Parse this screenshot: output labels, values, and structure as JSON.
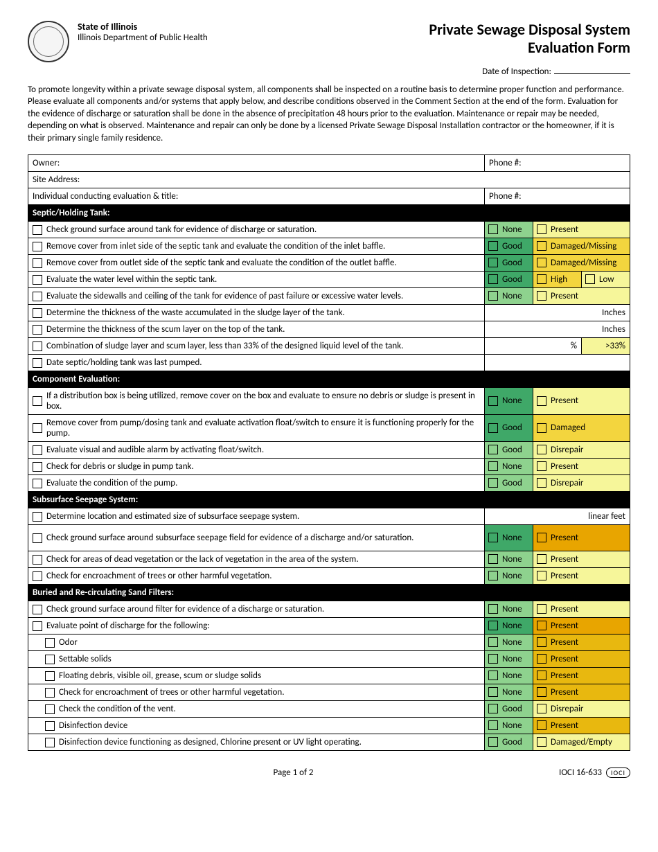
{
  "colors": {
    "green_dark": "#3fa868",
    "green_light": "#8ed28e",
    "yellow_light": "#f6f69a",
    "yellow_mid": "#f3d53e",
    "yellow_dark": "#e8b80f",
    "orange": "#e8a500"
  },
  "header": {
    "state": "State of Illinois",
    "dept": "Illinois Department of Public Health",
    "title_l1": "Private Sewage Disposal System",
    "title_l2": "Evaluation Form",
    "date_label": "Date of Inspection:"
  },
  "intro": "To promote longevity within a private sewage disposal system, all components shall be inspected on a routine basis to determine proper function and performance. Please evaluate all components and/or systems that apply below, and describe conditions observed in the Comment Section at the end of the form. Evaluation for the evidence of discharge or saturation shall be done in the absence of precipitation 48 hours prior to the evaluation. Maintenance or repair may be needed, depending on what is observed. Maintenance and repair can only be done by a licensed Private Sewage Disposal Installation contractor or the homeowner, if it is their primary single family residence.",
  "info": {
    "owner": "Owner:",
    "phone": "Phone #:",
    "site": "Site Address:",
    "evaluator": "Individual conducting evaluation & title:"
  },
  "sections": [
    {
      "title": "Septic/Holding Tank:",
      "rows": [
        {
          "text": "Check ground surface around tank for evidence of discharge or saturation.",
          "opts": [
            {
              "label": "None",
              "c": "green_light"
            },
            {
              "label": "Present",
              "c": "yellow_light"
            }
          ]
        },
        {
          "text": "Remove cover from inlet side of the septic tank and evaluate the condition of the inlet baffle.",
          "opts": [
            {
              "label": "Good",
              "c": "green_dark"
            },
            {
              "label": "Damaged/Missing",
              "c": "yellow_mid"
            }
          ]
        },
        {
          "text": "Remove cover from outlet side of the septic tank and evaluate the condition of the outlet baffle.",
          "opts": [
            {
              "label": "Good",
              "c": "green_dark"
            },
            {
              "label": "Damaged/Missing",
              "c": "yellow_mid"
            }
          ]
        },
        {
          "text": "Evaluate the water level within the septic tank.",
          "opts": [
            {
              "label": "Good",
              "c": "green_dark"
            },
            {
              "label": "High",
              "c": "yellow_mid",
              "half": true
            },
            {
              "label": "Low",
              "c": "yellow_light",
              "half": true
            }
          ]
        },
        {
          "text": "Evaluate the sidewalls and ceiling of the tank for evidence of past failure or excessive water levels.",
          "opts": [
            {
              "label": "None",
              "c": "green_light"
            },
            {
              "label": "Present",
              "c": "yellow_light"
            }
          ]
        },
        {
          "text": "Determine the thickness of the waste accumulated in the sludge layer of the tank.",
          "trail": "Inches"
        },
        {
          "text": "Determine the thickness of the scum layer on the top of the tank.",
          "trail": "Inches"
        },
        {
          "text": "Combination of sludge layer and scum layer, less than 33% of the designed liquid level of the tank.",
          "pct": true
        },
        {
          "text": "Date septic/holding tank was last pumped.",
          "blank": true
        }
      ]
    },
    {
      "title": "Component Evaluation:",
      "rows": [
        {
          "text": "If a distribution box is being utilized, remove cover on the box and evaluate to ensure no debris or sludge is present in box.",
          "opts": [
            {
              "label": "None",
              "c": "green_dark"
            },
            {
              "label": "Present",
              "c": "yellow_light"
            }
          ],
          "tall": true
        },
        {
          "text": "Remove cover from pump/dosing tank and evaluate activation float/switch to ensure it is functioning properly for the pump.",
          "opts": [
            {
              "label": "Good",
              "c": "green_dark"
            },
            {
              "label": "Damaged",
              "c": "yellow_mid"
            }
          ],
          "tall": true
        },
        {
          "text": "Evaluate visual and audible alarm by activating float/switch.",
          "opts": [
            {
              "label": "Good",
              "c": "green_light"
            },
            {
              "label": "Disrepair",
              "c": "yellow_light"
            }
          ]
        },
        {
          "text": "Check for debris or sludge in pump tank.",
          "opts": [
            {
              "label": "None",
              "c": "green_light"
            },
            {
              "label": "Present",
              "c": "yellow_light"
            }
          ]
        },
        {
          "text": "Evaluate the condition of the pump.",
          "opts": [
            {
              "label": "Good",
              "c": "green_light"
            },
            {
              "label": "Disrepair",
              "c": "yellow_light"
            }
          ]
        }
      ]
    },
    {
      "title": "Subsurface Seepage System:",
      "rows": [
        {
          "text": "Determine location and estimated size of subsurface seepage system.",
          "trail": "linear feet"
        },
        {
          "text": "Check ground surface around subsurface seepage field for evidence of a discharge and/or saturation.",
          "opts": [
            {
              "label": "None",
              "c": "green_dark"
            },
            {
              "label": "Present",
              "c": "orange"
            }
          ],
          "tall": true
        },
        {
          "text": "Check for areas of dead vegetation or the lack of vegetation in the area of the system.",
          "opts": [
            {
              "label": "None",
              "c": "green_light"
            },
            {
              "label": "Present",
              "c": "yellow_light"
            }
          ]
        },
        {
          "text": "Check for encroachment of trees or other harmful vegetation.",
          "opts": [
            {
              "label": "None",
              "c": "green_light"
            },
            {
              "label": "Present",
              "c": "yellow_light"
            }
          ]
        }
      ]
    },
    {
      "title": "Buried and Re-circulating Sand Filters:",
      "rows": [
        {
          "text": "Check ground surface around filter for evidence of a discharge or saturation.",
          "opts": [
            {
              "label": "None",
              "c": "green_light"
            },
            {
              "label": "Present",
              "c": "yellow_light"
            }
          ]
        },
        {
          "text": "Evaluate point of discharge for the following:",
          "opts": [
            {
              "label": "None",
              "c": "green_dark"
            },
            {
              "label": "Present",
              "c": "orange"
            }
          ]
        },
        {
          "text": "Odor",
          "indent": true,
          "opts": [
            {
              "label": "None",
              "c": "green_light"
            },
            {
              "label": "Present",
              "c": "yellow_dark"
            }
          ]
        },
        {
          "text": "Settable solids",
          "indent": true,
          "opts": [
            {
              "label": "None",
              "c": "green_light"
            },
            {
              "label": "Present",
              "c": "yellow_dark"
            }
          ]
        },
        {
          "text": "Floating debris, visible oil, grease, scum or sludge solids",
          "indent": true,
          "opts": [
            {
              "label": "None",
              "c": "green_light"
            },
            {
              "label": "Present",
              "c": "yellow_dark"
            }
          ]
        },
        {
          "text": "Check for encroachment of trees or other harmful vegetation.",
          "indent": true,
          "opts": [
            {
              "label": "None",
              "c": "green_light"
            },
            {
              "label": "Present",
              "c": "yellow_dark"
            }
          ]
        },
        {
          "text": "Check the condition of the vent.",
          "indent": true,
          "opts": [
            {
              "label": "Good",
              "c": "green_light"
            },
            {
              "label": "Disrepair",
              "c": "yellow_light"
            }
          ]
        },
        {
          "text": "Disinfection device",
          "indent": true,
          "opts": [
            {
              "label": "None",
              "c": "green_light"
            },
            {
              "label": "Present",
              "c": "yellow_dark"
            }
          ]
        },
        {
          "text": "Disinfection device functioning as designed, Chlorine present or UV light operating.",
          "indent": true,
          "opts": [
            {
              "label": "Good",
              "c": "green_light"
            },
            {
              "label": "Damaged/Empty",
              "c": "yellow_light"
            }
          ]
        }
      ]
    }
  ],
  "footer": {
    "page": "Page 1 of 2",
    "code": "IOCI 16-633",
    "badge": "IOCI"
  }
}
